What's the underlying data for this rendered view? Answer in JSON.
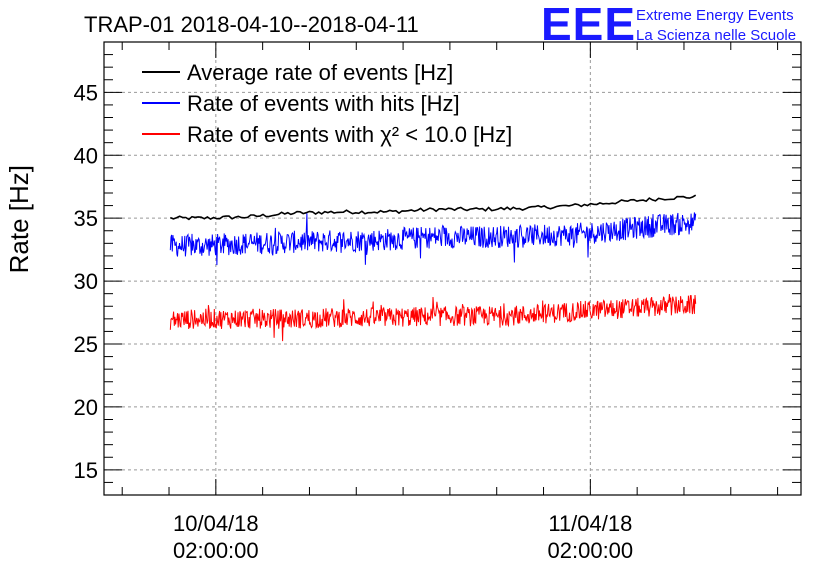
{
  "chart_data": {
    "type": "line",
    "title": "TRAP-01 2018-04-10--2018-04-11",
    "ylabel": "Rate [Hz]",
    "xlabel": "",
    "ylim": [
      13,
      49
    ],
    "yticks": [
      15,
      20,
      25,
      30,
      35,
      40,
      45
    ],
    "xlim": [
      "2018-04-09 18:50:00",
      "2018-04-11 15:30:00"
    ],
    "xticks": [
      {
        "value": "2018-04-10 02:00:00",
        "label_date": "10/04/18",
        "label_time": "02:00:00"
      },
      {
        "value": "2018-04-11 02:00:00",
        "label_date": "11/04/18",
        "label_time": "02:00:00"
      }
    ],
    "grid": true,
    "legend_position": "top-left",
    "x_start": "2018-04-09 23:05:00",
    "x_end": "2018-04-11 08:45:00",
    "series": [
      {
        "name": "Average rate of events [Hz]",
        "color": "#000000",
        "noise": 0.15,
        "points": [
          [
            "2018-04-09 23:05",
            35.0
          ],
          [
            "2018-04-10 01:00",
            35.0
          ],
          [
            "2018-04-10 04:00",
            35.1
          ],
          [
            "2018-04-10 07:00",
            35.4
          ],
          [
            "2018-04-10 10:00",
            35.5
          ],
          [
            "2018-04-10 13:00",
            35.5
          ],
          [
            "2018-04-10 16:00",
            35.7
          ],
          [
            "2018-04-10 19:00",
            35.7
          ],
          [
            "2018-04-10 22:00",
            35.8
          ],
          [
            "2018-04-11 01:00",
            36.0
          ],
          [
            "2018-04-11 04:00",
            36.3
          ],
          [
            "2018-04-11 07:00",
            36.6
          ],
          [
            "2018-04-11 08:45",
            36.7
          ]
        ]
      },
      {
        "name": "Rate of events with hits [Hz]",
        "color": "#0000ff",
        "noise": 0.9,
        "points": [
          [
            "2018-04-09 23:05",
            32.8
          ],
          [
            "2018-04-10 01:00",
            32.8
          ],
          [
            "2018-04-10 04:00",
            33.0
          ],
          [
            "2018-04-10 07:00",
            33.1
          ],
          [
            "2018-04-10 10:00",
            33.2
          ],
          [
            "2018-04-10 13:00",
            33.3
          ],
          [
            "2018-04-10 16:00",
            33.5
          ],
          [
            "2018-04-10 19:00",
            33.5
          ],
          [
            "2018-04-10 22:00",
            33.6
          ],
          [
            "2018-04-11 01:00",
            33.7
          ],
          [
            "2018-04-11 04:00",
            34.1
          ],
          [
            "2018-04-11 07:00",
            34.5
          ],
          [
            "2018-04-11 08:45",
            34.6
          ]
        ]
      },
      {
        "name": "Rate of events with χ² < 10.0 [Hz]",
        "color": "#ff0000",
        "noise": 0.8,
        "points": [
          [
            "2018-04-09 23:05",
            26.9
          ],
          [
            "2018-04-10 01:00",
            27.0
          ],
          [
            "2018-04-10 04:00",
            27.0
          ],
          [
            "2018-04-10 07:00",
            27.0
          ],
          [
            "2018-04-10 10:00",
            27.1
          ],
          [
            "2018-04-10 13:00",
            27.1
          ],
          [
            "2018-04-10 16:00",
            27.2
          ],
          [
            "2018-04-10 19:00",
            27.2
          ],
          [
            "2018-04-10 22:00",
            27.3
          ],
          [
            "2018-04-11 01:00",
            27.6
          ],
          [
            "2018-04-11 04:00",
            27.8
          ],
          [
            "2018-04-11 07:00",
            28.0
          ],
          [
            "2018-04-11 08:45",
            28.1
          ]
        ]
      }
    ]
  },
  "logo": {
    "mark": "EEE",
    "line1": "Extreme Energy Events",
    "line2": "La Scienza nelle Scuole"
  }
}
